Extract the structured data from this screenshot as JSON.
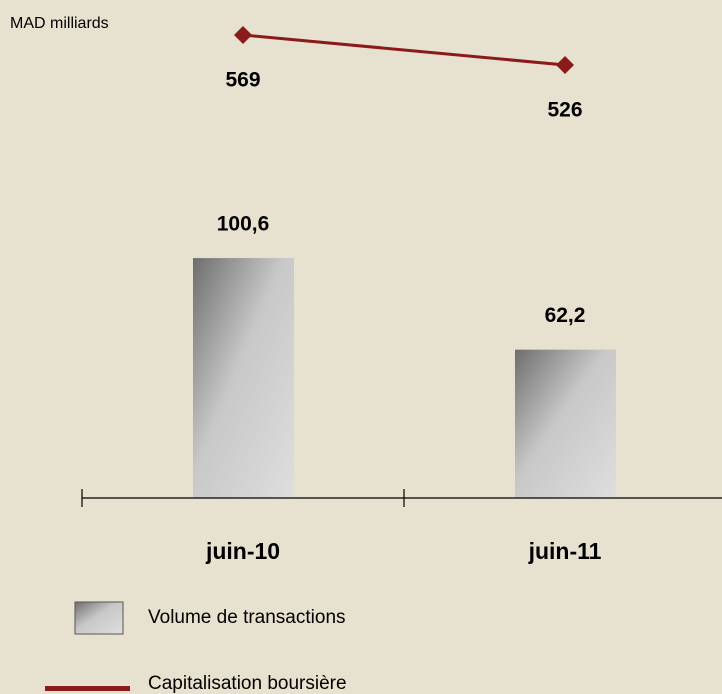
{
  "chart_data": {
    "type": "bar",
    "y_axis_label": "MAD milliards",
    "categories": [
      "juin-10",
      "juin-11"
    ],
    "series": [
      {
        "name": "Volume de transactions",
        "type": "bar",
        "color": "#8a8a8a",
        "values": [
          100.6,
          62.2
        ],
        "value_labels": [
          "100,6",
          "62,2"
        ]
      },
      {
        "name": "Capitalisation boursière",
        "type": "line",
        "axis": "y2",
        "color": "#8b1a1a",
        "values": [
          569,
          526
        ]
      }
    ],
    "ylim": [
      0,
      200
    ],
    "y2lim": [
      -94,
      589
    ],
    "grid": false
  }
}
